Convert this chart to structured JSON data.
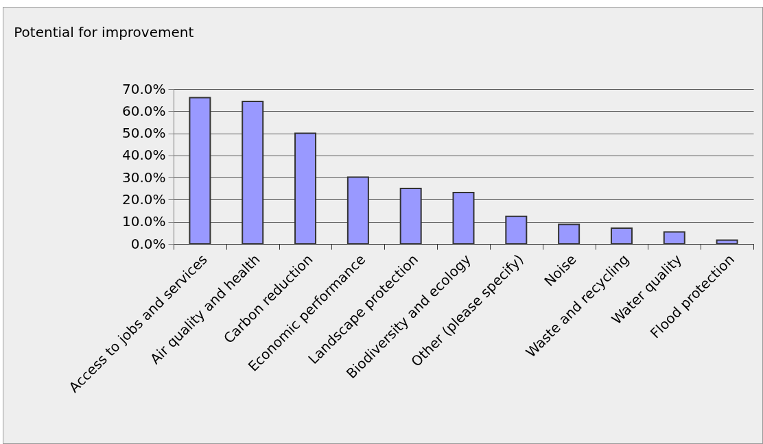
{
  "chart_data": {
    "type": "bar",
    "title": "Potential for improvement",
    "categories": [
      "Access to jobs and services",
      "Air quality and health",
      "Carbon reduction",
      "Economic performance",
      "Landscape protection",
      "Biodiversity and ecology",
      "Other (please specify)",
      "Noise",
      "Waste and recycling",
      "Water quality",
      "Flood protection"
    ],
    "values": [
      66.1,
      64.4,
      50.0,
      30.2,
      25.1,
      23.2,
      12.5,
      8.8,
      7.1,
      5.4,
      1.7
    ],
    "color": "#9999ff",
    "ylim": [
      0,
      70
    ],
    "yticks": [
      {
        "value": 0,
        "label": "0.0%"
      },
      {
        "value": 10,
        "label": "10.0%"
      },
      {
        "value": 20,
        "label": "20.0%"
      },
      {
        "value": 30,
        "label": "30.0%"
      },
      {
        "value": 40,
        "label": "40.0%"
      },
      {
        "value": 50,
        "label": "50.0%"
      },
      {
        "value": 60,
        "label": "60.0%"
      },
      {
        "value": 70,
        "label": "70.0%"
      }
    ],
    "grid": "y"
  }
}
